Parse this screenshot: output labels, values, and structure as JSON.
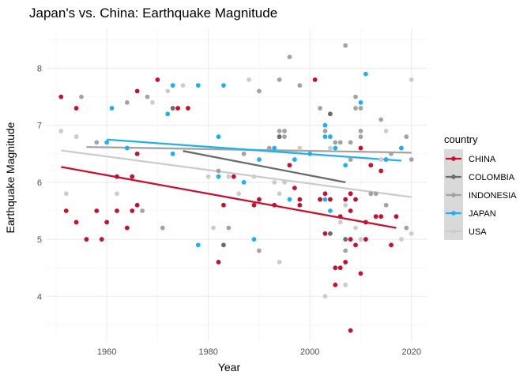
{
  "chart_data": {
    "type": "scatter",
    "title": "Japan's vs. China: Earthquake Magnitude",
    "xlabel": "Year",
    "ylabel": "Earthquake Magnitude",
    "xlim": [
      1948,
      2023
    ],
    "ylim": [
      3.2,
      8.7
    ],
    "xticks": [
      1960,
      1980,
      2000,
      2020
    ],
    "yticks": [
      4,
      5,
      6,
      7,
      8
    ],
    "grid": true,
    "legend": {
      "title": "country",
      "placement": "right"
    },
    "series": [
      {
        "name": "CHINA",
        "color": "#c8102e",
        "points": [
          [
            1951,
            7.5
          ],
          [
            1952,
            5.5
          ],
          [
            1954,
            7.3
          ],
          [
            1954,
            5.3
          ],
          [
            1956,
            5.0
          ],
          [
            1958,
            5.5
          ],
          [
            1959,
            5.0
          ],
          [
            1960,
            5.3
          ],
          [
            1962,
            6.1
          ],
          [
            1962,
            5.5
          ],
          [
            1964,
            5.2
          ],
          [
            1965,
            6.1
          ],
          [
            1965,
            5.5
          ],
          [
            1966,
            7.6
          ],
          [
            1966,
            6.5
          ],
          [
            1966,
            5.6
          ],
          [
            1970,
            7.8
          ],
          [
            1974,
            7.3
          ],
          [
            1976,
            7.3
          ],
          [
            1982,
            4.6
          ],
          [
            1983,
            5.6
          ],
          [
            1985,
            6.1
          ],
          [
            1989,
            5.6
          ],
          [
            1990,
            5.7
          ],
          [
            1993,
            5.6
          ],
          [
            1996,
            6.3
          ],
          [
            1997,
            5.9
          ],
          [
            1998,
            5.6
          ],
          [
            1998,
            5.7
          ],
          [
            2001,
            7.8
          ],
          [
            2002,
            5.7
          ],
          [
            2003,
            5.1
          ],
          [
            2003,
            5.8
          ],
          [
            2004,
            5.7
          ],
          [
            2005,
            4.5
          ],
          [
            2005,
            4.2
          ],
          [
            2006,
            4.5
          ],
          [
            2006,
            5.4
          ],
          [
            2007,
            4.6
          ],
          [
            2007,
            5.7
          ],
          [
            2008,
            5.5
          ],
          [
            2008,
            5.0
          ],
          [
            2008,
            5.8
          ],
          [
            2008,
            3.4
          ],
          [
            2009,
            5.7
          ],
          [
            2009,
            4.9
          ],
          [
            2010,
            4.4
          ],
          [
            2010,
            6.6
          ],
          [
            2011,
            5.0
          ],
          [
            2011,
            5.3
          ],
          [
            2012,
            6.3
          ],
          [
            2013,
            5.4
          ],
          [
            2014,
            6.2
          ],
          [
            2014,
            5.4
          ],
          [
            2016,
            4.9
          ],
          [
            2017,
            5.4
          ]
        ],
        "trend": [
          [
            1951,
            6.27
          ],
          [
            2017,
            5.2
          ]
        ]
      },
      {
        "name": "COLOMBIA",
        "color": "#6b6b6b",
        "points": [
          [
            1973,
            7.3
          ],
          [
            1983,
            4.9
          ],
          [
            1994,
            6.8
          ],
          [
            2002,
            5.7
          ],
          [
            2004,
            5.1
          ],
          [
            2004,
            7.2
          ],
          [
            2007,
            5.0
          ],
          [
            2008,
            5.8
          ]
        ],
        "trend": [
          [
            1975,
            6.55
          ],
          [
            2007,
            6.0
          ]
        ]
      },
      {
        "name": "INDONESIA",
        "color": "#a3a3a3",
        "points": [
          [
            1955,
            7.5
          ],
          [
            1958,
            6.7
          ],
          [
            1964,
            7.4
          ],
          [
            1964,
            5.2
          ],
          [
            1967,
            5.5
          ],
          [
            1968,
            7.5
          ],
          [
            1971,
            5.2
          ],
          [
            1982,
            6.2
          ],
          [
            1984,
            5.2
          ],
          [
            1987,
            6.5
          ],
          [
            1990,
            7.6
          ],
          [
            1990,
            4.8
          ],
          [
            1992,
            6.6
          ],
          [
            1994,
            7.8
          ],
          [
            1994,
            6.9
          ],
          [
            1994,
            6.8
          ],
          [
            1995,
            6.9
          ],
          [
            1995,
            6.8
          ],
          [
            1996,
            8.2
          ],
          [
            1998,
            7.7
          ],
          [
            2002,
            7.3
          ],
          [
            2003,
            6.9
          ],
          [
            2004,
            7.2
          ],
          [
            2005,
            6.7
          ],
          [
            2006,
            6.7
          ],
          [
            2007,
            8.4
          ],
          [
            2007,
            4.8
          ],
          [
            2008,
            6.7
          ],
          [
            2008,
            6.4
          ],
          [
            2009,
            7.5
          ],
          [
            2009,
            7.3
          ],
          [
            2010,
            7.3
          ],
          [
            2010,
            6.8
          ],
          [
            2010,
            6.9
          ],
          [
            2012,
            5.8
          ],
          [
            2013,
            5.8
          ],
          [
            2014,
            7.1
          ],
          [
            2015,
            6.4
          ],
          [
            2015,
            5.6
          ],
          [
            2016,
            6.5
          ],
          [
            2018,
            6.6
          ],
          [
            2019,
            6.8
          ],
          [
            2019,
            5.2
          ],
          [
            2020,
            6.4
          ]
        ],
        "trend": [
          [
            1956,
            6.62
          ],
          [
            2020,
            6.52
          ]
        ]
      },
      {
        "name": "JAPAN",
        "color": "#1fb0f0",
        "points": [
          [
            1960,
            6.7
          ],
          [
            1961,
            7.3
          ],
          [
            1964,
            6.6
          ],
          [
            1972,
            7.2
          ],
          [
            1973,
            7.7
          ],
          [
            1973,
            6.5
          ],
          [
            1978,
            7.7
          ],
          [
            1978,
            4.9
          ],
          [
            1982,
            6.8
          ],
          [
            1982,
            6.1
          ],
          [
            1983,
            7.7
          ],
          [
            1987,
            6.0
          ],
          [
            1989,
            5.0
          ],
          [
            1990,
            6.4
          ],
          [
            1993,
            6.6
          ],
          [
            1996,
            5.7
          ],
          [
            1997,
            6.4
          ],
          [
            2000,
            6.5
          ],
          [
            2003,
            7.0
          ],
          [
            2003,
            6.8
          ],
          [
            2003,
            5.7
          ],
          [
            2004,
            6.8
          ],
          [
            2004,
            5.5
          ],
          [
            2005,
            6.6
          ],
          [
            2007,
            6.3
          ],
          [
            2010,
            7.4
          ],
          [
            2011,
            7.9
          ],
          [
            2015,
            6.4
          ],
          [
            2018,
            6.6
          ]
        ],
        "trend": [
          [
            1960,
            6.75
          ],
          [
            2018,
            6.38
          ]
        ]
      },
      {
        "name": "USA",
        "color": "#cccccc",
        "points": [
          [
            1951,
            6.9
          ],
          [
            1952,
            5.8
          ],
          [
            1954,
            6.8
          ],
          [
            1962,
            5.8
          ],
          [
            1969,
            7.4
          ],
          [
            1972,
            7.6
          ],
          [
            1975,
            7.7
          ],
          [
            1980,
            6.1
          ],
          [
            1981,
            5.2
          ],
          [
            1984,
            6.1
          ],
          [
            1986,
            5.8
          ],
          [
            1988,
            7.8
          ],
          [
            1989,
            6.1
          ],
          [
            1993,
            6.0
          ],
          [
            1994,
            5.8
          ],
          [
            1994,
            4.6
          ],
          [
            1995,
            6.0
          ],
          [
            1998,
            6.6
          ],
          [
            2003,
            4.0
          ],
          [
            2004,
            6.6
          ],
          [
            2006,
            5.3
          ],
          [
            2007,
            5.6
          ],
          [
            2007,
            4.2
          ],
          [
            2009,
            5.2
          ],
          [
            2010,
            5.0
          ],
          [
            2012,
            5.8
          ],
          [
            2014,
            6.4
          ],
          [
            2015,
            6.9
          ],
          [
            2018,
            5.0
          ],
          [
            2020,
            7.8
          ],
          [
            2020,
            5.1
          ]
        ],
        "trend": [
          [
            1951,
            6.56
          ],
          [
            2020,
            5.74
          ]
        ]
      }
    ]
  }
}
